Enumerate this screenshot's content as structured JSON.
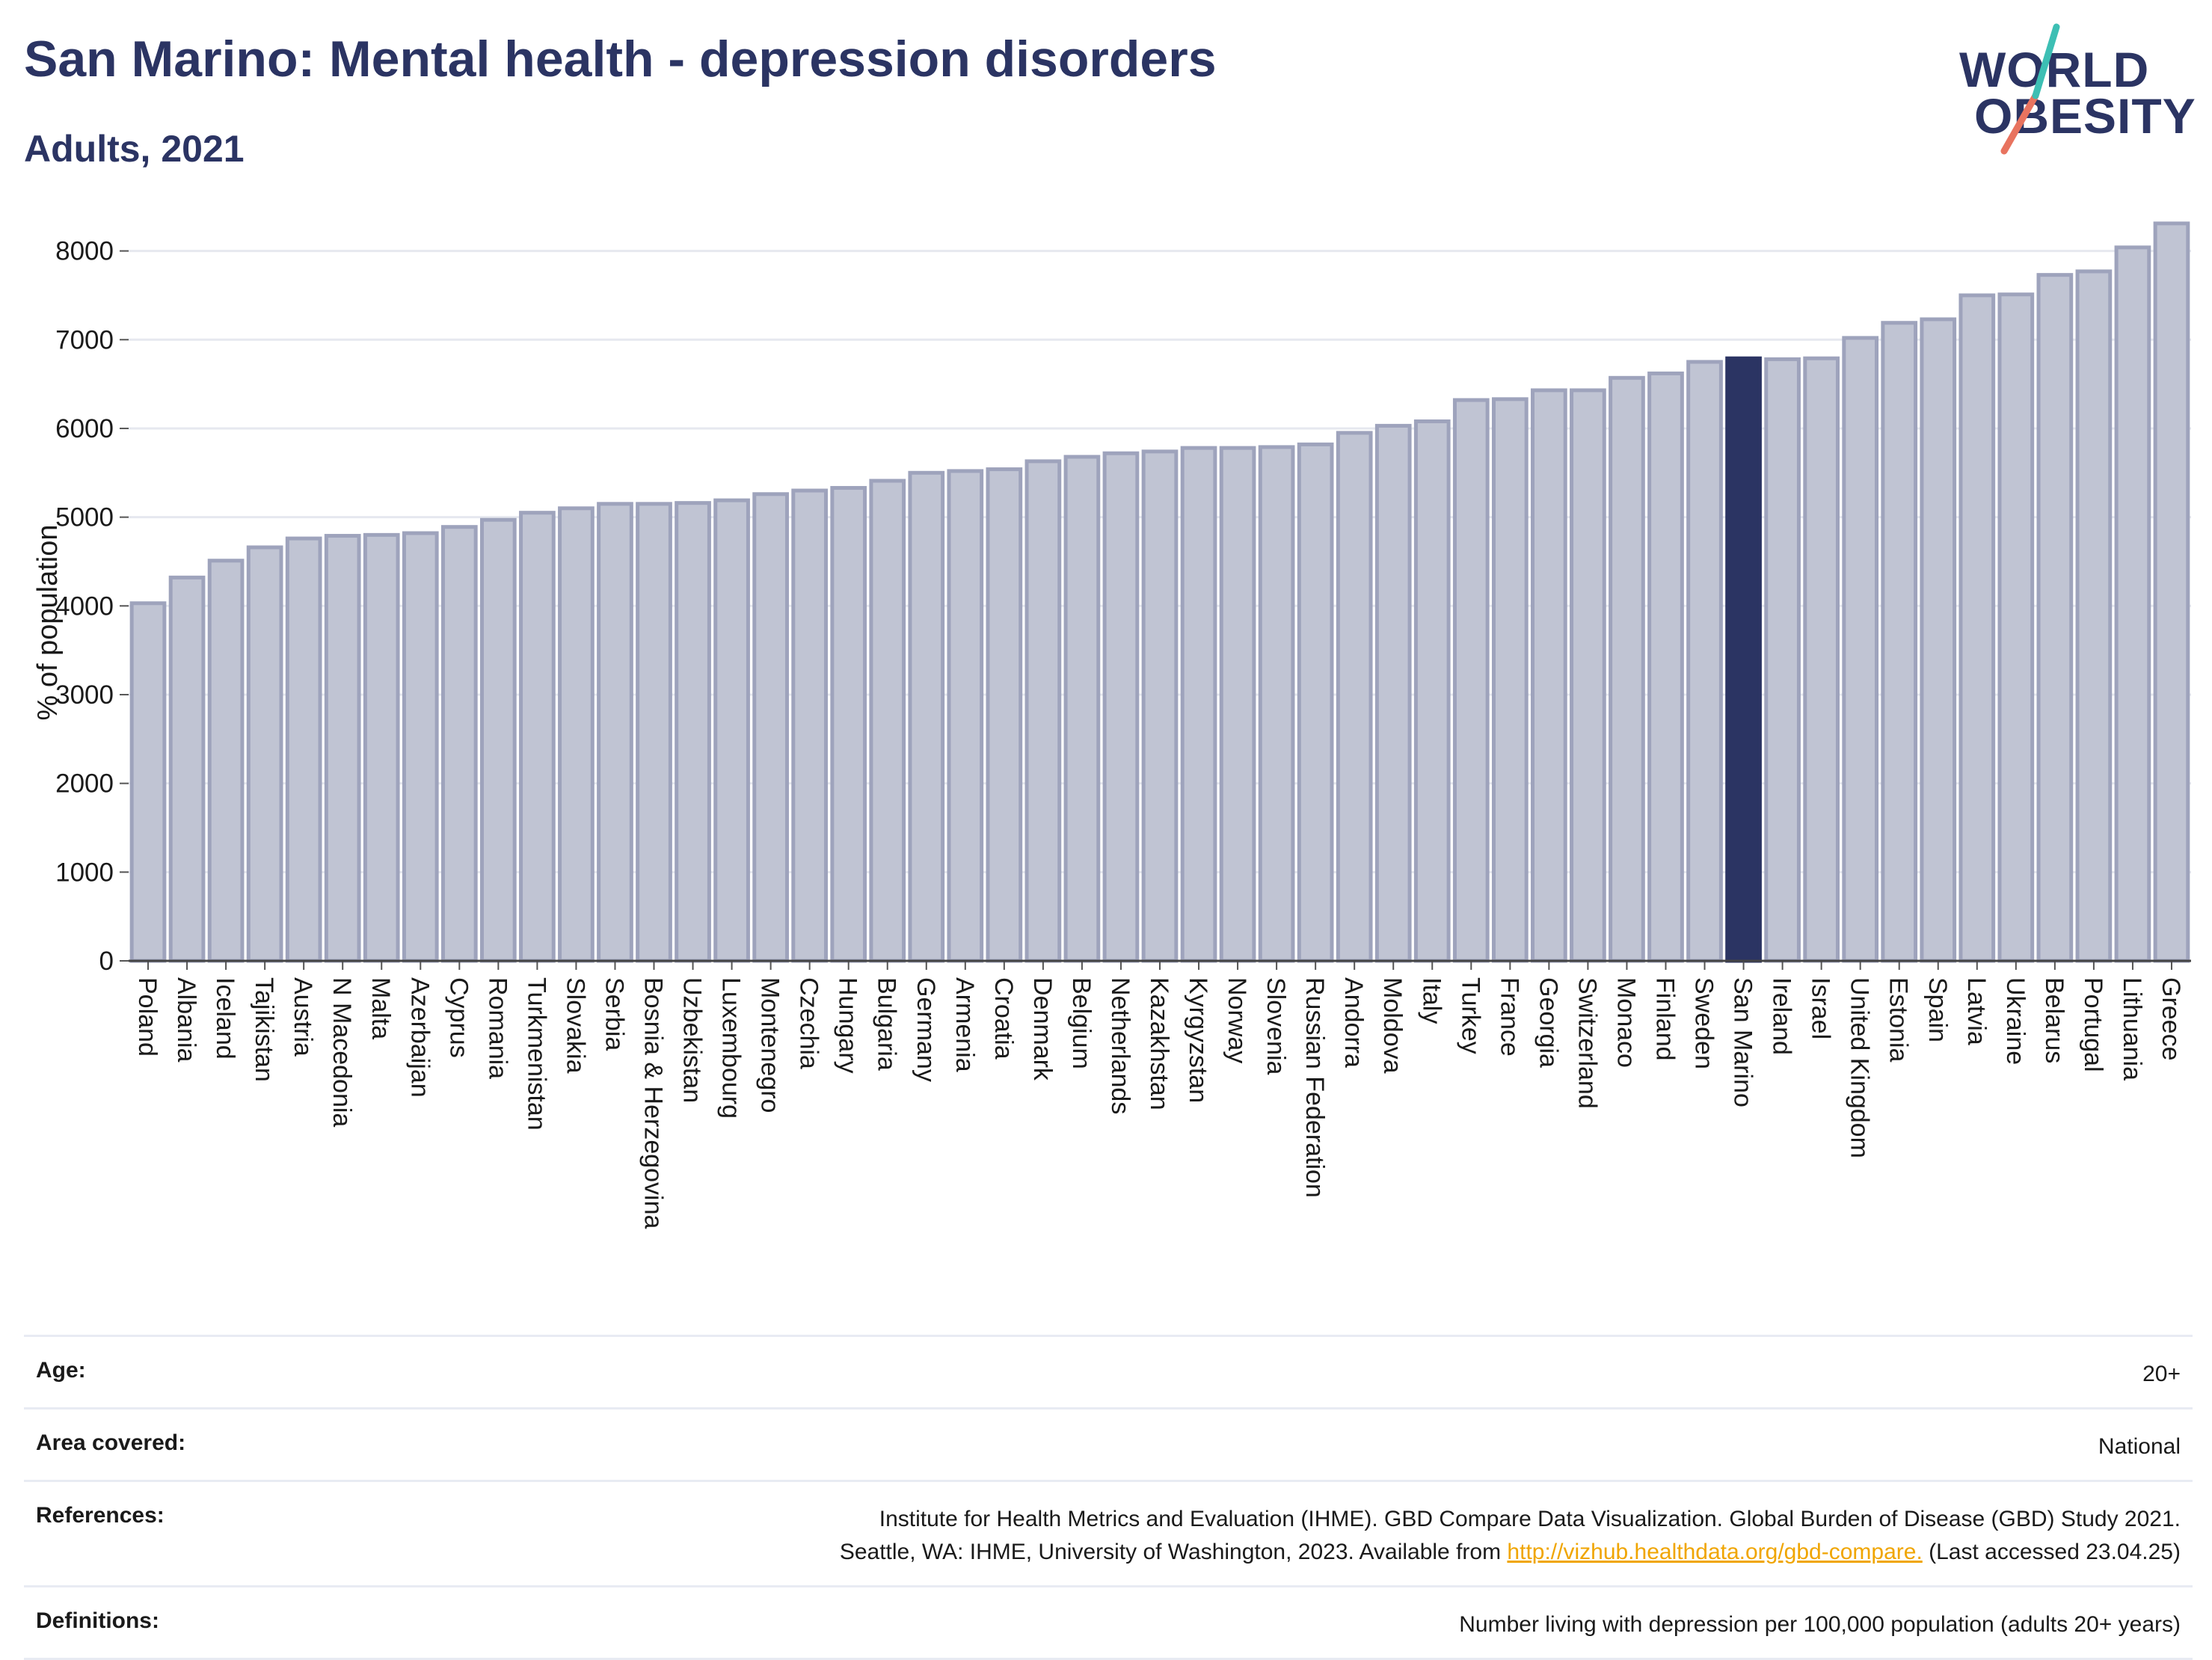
{
  "header": {
    "title": "San Marino: Mental health - depression disorders",
    "subtitle": "Adults, 2021"
  },
  "logo": {
    "line1": "WORLD",
    "line2": "OBESITY"
  },
  "chart_data": {
    "type": "bar",
    "ylabel": "% of population",
    "xlabel": "",
    "ylim": [
      0,
      8300
    ],
    "yticks": [
      0,
      1000,
      2000,
      3000,
      4000,
      5000,
      6000,
      7000,
      8000
    ],
    "grid": true,
    "highlight": "San Marino",
    "colors": {
      "bar": "#c0c4d3",
      "bar_edge": "#9ea3bc",
      "highlight": "#2b3463",
      "grid": "#e6e8ef"
    },
    "categories": [
      "Poland",
      "Albania",
      "Iceland",
      "Tajikistan",
      "Austria",
      "N Macedonia",
      "Malta",
      "Azerbaijan",
      "Cyprus",
      "Romania",
      "Turkmenistan",
      "Slovakia",
      "Serbia",
      "Bosnia & Herzegovina",
      "Uzbekistan",
      "Luxembourg",
      "Montenegro",
      "Czechia",
      "Hungary",
      "Bulgaria",
      "Germany",
      "Armenia",
      "Croatia",
      "Denmark",
      "Belgium",
      "Netherlands",
      "Kazakhstan",
      "Kyrgyzstan",
      "Norway",
      "Slovenia",
      "Russian Federation",
      "Andorra",
      "Moldova",
      "Italy",
      "Turkey",
      "France",
      "Georgia",
      "Switzerland",
      "Monaco",
      "Finland",
      "Sweden",
      "San Marino",
      "Ireland",
      "Israel",
      "United Kingdom",
      "Estonia",
      "Spain",
      "Latvia",
      "Ukraine",
      "Belarus",
      "Portugal",
      "Lithuania",
      "Greece"
    ],
    "values": [
      4030,
      4320,
      4510,
      4660,
      4760,
      4790,
      4800,
      4820,
      4890,
      4970,
      5050,
      5100,
      5150,
      5150,
      5160,
      5190,
      5260,
      5300,
      5330,
      5410,
      5500,
      5520,
      5540,
      5630,
      5680,
      5720,
      5740,
      5780,
      5780,
      5790,
      5820,
      5950,
      6030,
      6080,
      6320,
      6330,
      6430,
      6430,
      6570,
      6620,
      6750,
      6790,
      6780,
      6790,
      7020,
      7190,
      7230,
      7500,
      7510,
      7730,
      7770,
      8040,
      8310
    ]
  },
  "info": {
    "rows": [
      {
        "key": "Age:",
        "value": "20+"
      },
      {
        "key": "Area covered:",
        "value": "National"
      },
      {
        "key": "References:",
        "value_line1": "Institute for Health Metrics and Evaluation (IHME). GBD Compare Data Visualization. Global Burden of Disease (GBD) Study 2021.",
        "value_line2_pre": "Seattle, WA: IHME, University of Washington, 2023. Available from ",
        "value_link": "http://vizhub.healthdata.org/gbd-compare.",
        "value_line2_post": " (Last accessed 23.04.25)"
      },
      {
        "key": "Definitions:",
        "value": "Number living with depression per 100,000 population (adults 20+ years)"
      }
    ]
  }
}
